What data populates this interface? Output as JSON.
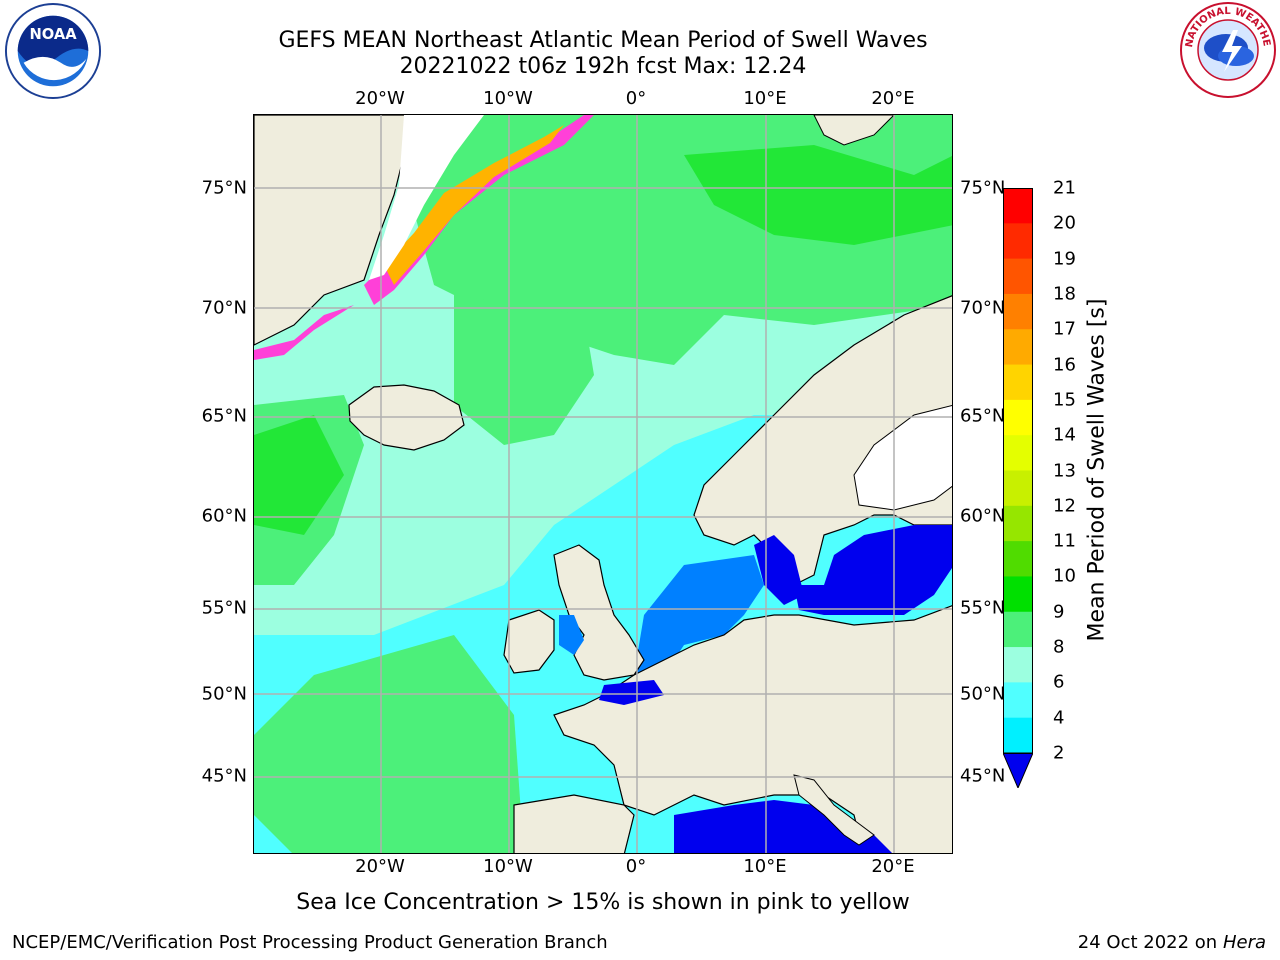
{
  "header": {
    "title_line1": "GEFS MEAN Northeast Atlantic Mean Period of Swell Waves",
    "title_line2": "20221022 t06z 192h fcst   Max: 12.24"
  },
  "map": {
    "lon_ticks": [
      "20°W",
      "10°W",
      "0°",
      "10°E",
      "20°E"
    ],
    "lat_ticks": [
      "75°N",
      "70°N",
      "65°N",
      "60°N",
      "55°N",
      "50°N",
      "45°N"
    ],
    "land_color": "#efeddd",
    "grid_color": "#b0b0b0"
  },
  "colorbar": {
    "title": "Mean Period of Swell Waves [s]",
    "labels": [
      "21",
      "20",
      "19",
      "18",
      "17",
      "16",
      "15",
      "14",
      "13",
      "12",
      "11",
      "10",
      "9",
      "8",
      "6",
      "4",
      "2"
    ],
    "colors": [
      "#ff0000",
      "#ff2a00",
      "#ff5500",
      "#ff8000",
      "#ffaa00",
      "#ffd400",
      "#ffff00",
      "#e4ff00",
      "#c8f000",
      "#96e600",
      "#50dc00",
      "#00e000",
      "#4cf07a",
      "#9cffe0",
      "#50ffff",
      "#00f0ff",
      "#0080ff",
      "#0000ee"
    ]
  },
  "note": "Sea Ice Concentration > 15% is shown in pink to yellow",
  "footer": {
    "left": "NCEP/EMC/Verification Post Processing Product Generation Branch",
    "date": "24 Oct 2022 on ",
    "machine": "Hera"
  },
  "logos": {
    "noaa_text": "NOAA",
    "nws_text": "NATIONAL WEATHER SERVICE"
  }
}
